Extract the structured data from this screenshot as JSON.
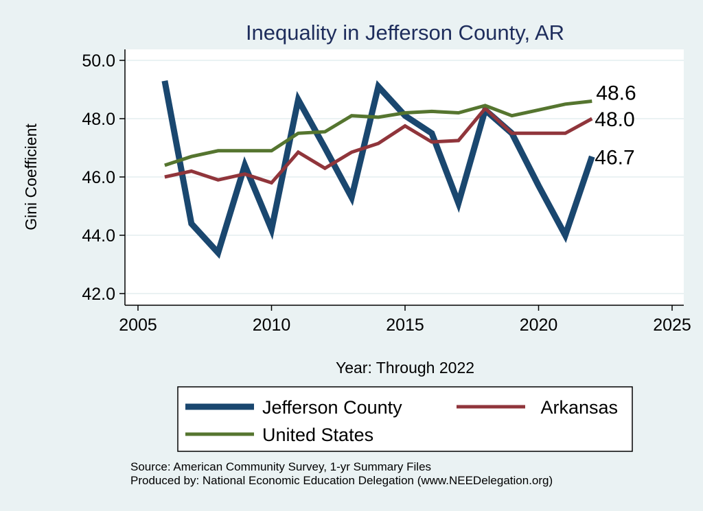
{
  "chart_data": {
    "type": "line",
    "title": "Inequality in Jefferson County, AR",
    "xlabel": "Year: Through 2022",
    "ylabel": "Gini Coefficient",
    "xlim": [
      2005,
      2025
    ],
    "ylim": [
      42.0,
      50.0
    ],
    "x_ticks": [
      "2005",
      "2010",
      "2015",
      "2020",
      "2025"
    ],
    "y_ticks": [
      "42.0",
      "44.0",
      "46.0",
      "48.0",
      "50.0"
    ],
    "grid": true,
    "legend_position": "bottom",
    "x": [
      2006,
      2007,
      2008,
      2009,
      2010,
      2011,
      2012,
      2013,
      2014,
      2015,
      2016,
      2017,
      2018,
      2019,
      2020,
      2021,
      2022
    ],
    "series": [
      {
        "name": "Jefferson County",
        "color": "#1a476f",
        "values": [
          49.3,
          44.4,
          43.4,
          46.4,
          44.2,
          48.65,
          47.0,
          45.3,
          49.1,
          48.1,
          47.5,
          45.1,
          48.3,
          47.5,
          45.7,
          44.0,
          46.7
        ],
        "end_label": "46.7"
      },
      {
        "name": "Arkansas",
        "color": "#90353b",
        "values": [
          46.0,
          46.2,
          45.9,
          46.1,
          45.8,
          46.85,
          46.3,
          46.85,
          47.15,
          47.75,
          47.2,
          47.25,
          48.35,
          47.5,
          47.5,
          47.5,
          48.0
        ],
        "end_label": "48.0"
      },
      {
        "name": "United States",
        "color": "#55752f",
        "values": [
          46.4,
          46.7,
          46.9,
          46.9,
          46.9,
          47.5,
          47.55,
          48.1,
          48.05,
          48.2,
          48.25,
          48.2,
          48.45,
          48.1,
          48.3,
          48.5,
          48.6
        ],
        "end_label": "48.6"
      }
    ]
  },
  "footer": {
    "source": "Source: American Community Survey, 1-yr Summary Files",
    "produced": "Produced by: National Economic Education Delegation (www.NEEDelegation.org)"
  }
}
